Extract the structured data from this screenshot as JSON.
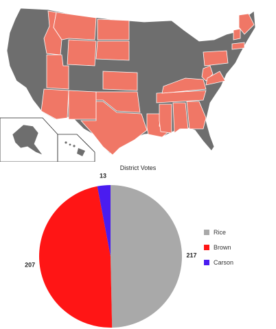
{
  "map": {
    "colors": {
      "won": "#f07766",
      "other": "#6e6e6e",
      "border": "#ffffff",
      "outline": "#222222"
    }
  },
  "chart_data": {
    "type": "pie",
    "title": "District Votes",
    "slices": [
      {
        "label": "Rice",
        "value": 217,
        "color": "#a9a9a9"
      },
      {
        "label": "Brown",
        "value": 207,
        "color": "#ff1515"
      },
      {
        "label": "Carson",
        "value": 13,
        "color": "#4a1cf0"
      }
    ],
    "legend_position": "right"
  }
}
